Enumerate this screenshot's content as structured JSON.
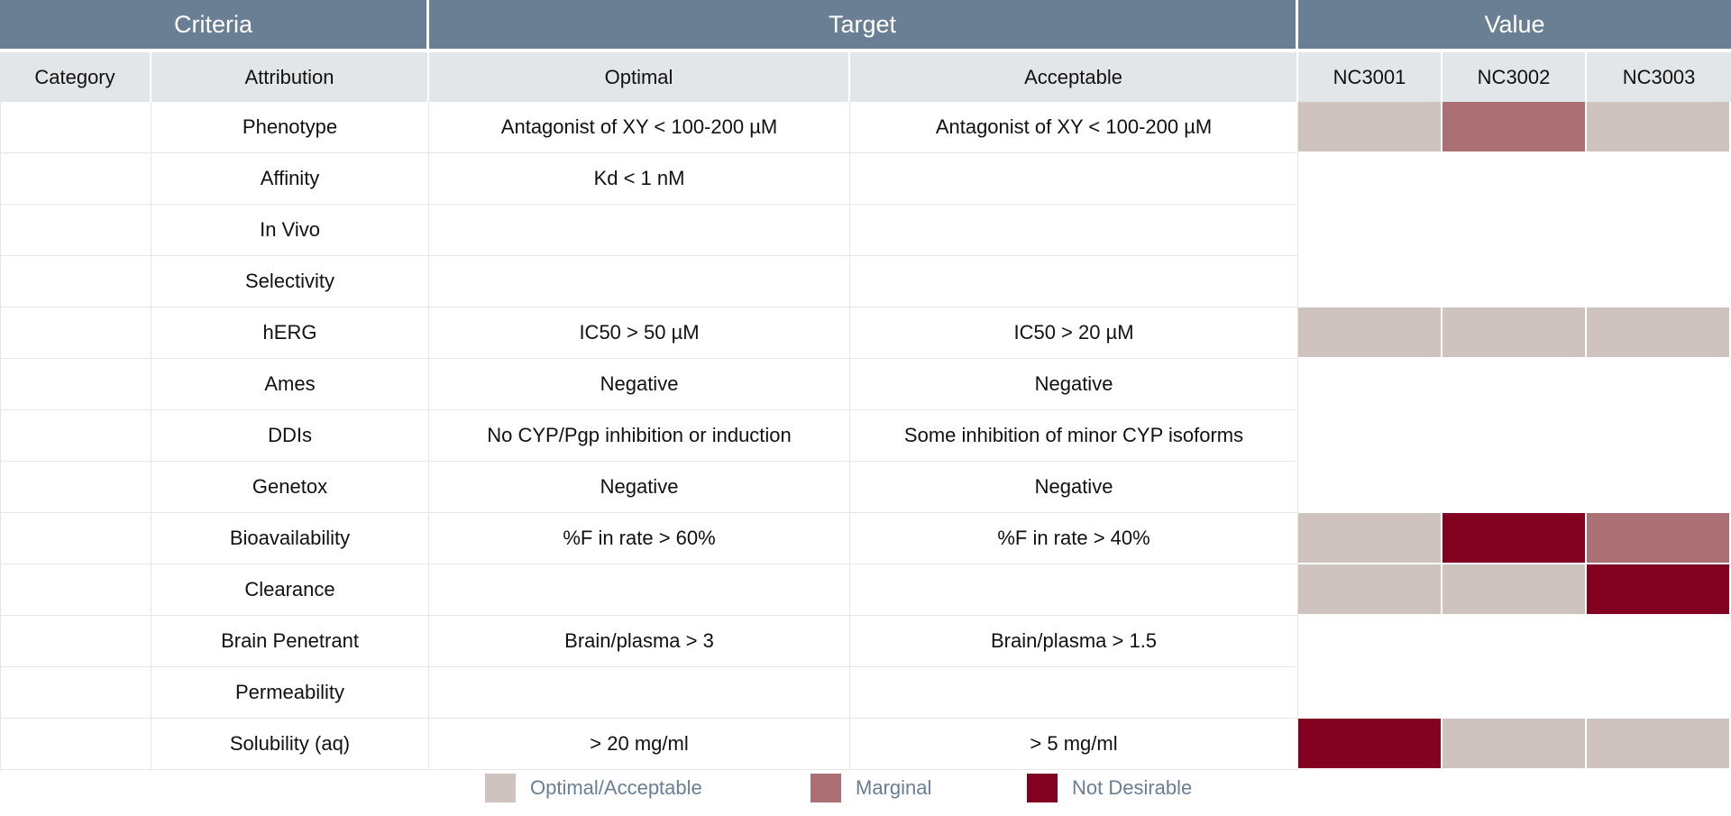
{
  "header": {
    "groups": [
      "Criteria",
      "Target",
      "Value"
    ],
    "columns": [
      "Category",
      "Attribution",
      "Optimal",
      "Acceptable",
      "NC3001",
      "NC3002",
      "NC3003"
    ]
  },
  "colors": {
    "header_bg": "#6a7f93",
    "subheader_bg": "#e3e6e9",
    "optimal_acceptable": "#cfc3c0",
    "marginal": "#aa7074",
    "not_desirable": "#820020",
    "empty": "#ffffff"
  },
  "rows": [
    {
      "category": "",
      "attribution": "Phenotype",
      "optimal": "Antagonist of XY < 100-200 µM",
      "acceptable": "Antagonist of XY < 100-200 µM",
      "values": [
        "optimal_acceptable",
        "marginal",
        "optimal_acceptable"
      ]
    },
    {
      "category": "",
      "attribution": "Affinity",
      "optimal": "Kd < 1 nM",
      "acceptable": "",
      "values": [
        "empty",
        "empty",
        "empty"
      ]
    },
    {
      "category": "",
      "attribution": "In Vivo",
      "optimal": "",
      "acceptable": "",
      "values": [
        "empty",
        "empty",
        "empty"
      ]
    },
    {
      "category": "",
      "attribution": "Selectivity",
      "optimal": "",
      "acceptable": "",
      "values": [
        "empty",
        "empty",
        "empty"
      ]
    },
    {
      "category": "",
      "attribution": "hERG",
      "optimal": "IC50 > 50 µM",
      "acceptable": "IC50 > 20 µM",
      "values": [
        "optimal_acceptable",
        "optimal_acceptable",
        "optimal_acceptable"
      ]
    },
    {
      "category": "",
      "attribution": "Ames",
      "optimal": "Negative",
      "acceptable": "Negative",
      "values": [
        "empty",
        "empty",
        "empty"
      ]
    },
    {
      "category": "",
      "attribution": "DDIs",
      "optimal": "No CYP/Pgp inhibition or induction",
      "acceptable": "Some inhibition of minor CYP isoforms",
      "values": [
        "empty",
        "empty",
        "empty"
      ]
    },
    {
      "category": "",
      "attribution": "Genetox",
      "optimal": "Negative",
      "acceptable": "Negative",
      "values": [
        "empty",
        "empty",
        "empty"
      ]
    },
    {
      "category": "",
      "attribution": "Bioavailability",
      "optimal": "%F in rate > 60%",
      "acceptable": "%F in rate > 40%",
      "values": [
        "optimal_acceptable",
        "not_desirable",
        "marginal"
      ]
    },
    {
      "category": "",
      "attribution": "Clearance",
      "optimal": "",
      "acceptable": "",
      "values": [
        "optimal_acceptable",
        "optimal_acceptable",
        "not_desirable"
      ]
    },
    {
      "category": "",
      "attribution": "Brain Penetrant",
      "optimal": "Brain/plasma > 3",
      "acceptable": "Brain/plasma > 1.5",
      "values": [
        "empty",
        "empty",
        "empty"
      ]
    },
    {
      "category": "",
      "attribution": "Permeability",
      "optimal": "",
      "acceptable": "",
      "values": [
        "empty",
        "empty",
        "empty"
      ]
    },
    {
      "category": "",
      "attribution": "Solubility (aq)",
      "optimal": "> 20 mg/ml",
      "acceptable": "> 5 mg/ml",
      "values": [
        "not_desirable",
        "optimal_acceptable",
        "optimal_acceptable"
      ]
    }
  ],
  "legend": [
    {
      "label": "Optimal/Acceptable",
      "color_key": "optimal_acceptable"
    },
    {
      "label": "Marginal",
      "color_key": "marginal"
    },
    {
      "label": "Not Desirable",
      "color_key": "not_desirable"
    }
  ]
}
